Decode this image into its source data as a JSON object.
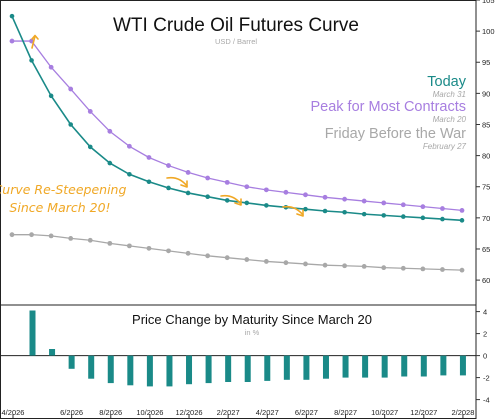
{
  "chart_data": [
    {
      "type": "line",
      "title": "WTI Crude Oil Futures Curve",
      "subtitle": "USD / Barrel",
      "ylim": [
        56,
        105
      ],
      "yticks": [
        60,
        65,
        70,
        75,
        80,
        85,
        90,
        95,
        100,
        105
      ],
      "x_months": 24,
      "grid": false,
      "legend_placement": "top-right",
      "legend": [
        {
          "label": "Today",
          "date": "March 31",
          "color": "#1a8a88"
        },
        {
          "label": "Peak for Most Contracts",
          "date": "March 20",
          "color": "#a77ee0"
        },
        {
          "label": "Friday Before the War",
          "date": "February 27",
          "color": "#a8a8a8"
        }
      ],
      "annotation": {
        "text": [
          "Curve Re-Steepening",
          "Since March 20!"
        ],
        "color": "#f0a826"
      },
      "series": [
        {
          "color": "#1a8a88",
          "values": [
            102.4,
            95.3,
            89.6,
            85.0,
            81.4,
            78.8,
            77.0,
            75.8,
            74.8,
            74.0,
            73.4,
            72.8,
            72.4,
            72.0,
            71.7,
            71.4,
            71.1,
            70.9,
            70.6,
            70.4,
            70.2,
            70.0,
            69.8,
            69.6
          ]
        },
        {
          "color": "#a77ee0",
          "values": [
            98.4,
            98.4,
            94.2,
            90.7,
            87.1,
            83.9,
            81.5,
            79.7,
            78.4,
            77.3,
            76.4,
            75.7,
            75.0,
            74.5,
            74.1,
            73.7,
            73.3,
            73.0,
            72.7,
            72.4,
            72.1,
            71.8,
            71.5,
            71.2
          ]
        },
        {
          "color": "#a8a8a8",
          "values": [
            67.3,
            67.3,
            67.1,
            66.7,
            66.4,
            65.9,
            65.5,
            65.1,
            64.7,
            64.3,
            63.9,
            63.6,
            63.3,
            63.0,
            62.8,
            62.6,
            62.4,
            62.3,
            62.2,
            62.0,
            61.9,
            61.8,
            61.7,
            61.6
          ]
        }
      ]
    },
    {
      "type": "bar",
      "title": "Price Change by Maturity Since March 20",
      "subtitle": "in %",
      "ylim": [
        -4.4,
        4.6
      ],
      "yticks": [
        -4,
        -2,
        0,
        2,
        4
      ],
      "color": "#1a8a88",
      "categories": [
        "4/2026",
        "5/2026",
        "6/2026",
        "7/2026",
        "8/2026",
        "9/2026",
        "10/2026",
        "11/2026",
        "12/2026",
        "1/2027",
        "2/2027",
        "3/2027",
        "4/2027",
        "5/2027",
        "6/2027",
        "7/2027",
        "8/2027",
        "9/2027",
        "10/2027",
        "11/2027",
        "12/2027",
        "1/2028",
        "2/2028"
      ],
      "values": [
        4.1,
        0.6,
        -1.2,
        -2.1,
        -2.5,
        -2.7,
        -2.8,
        -2.8,
        -2.6,
        -2.5,
        -2.4,
        -2.4,
        -2.3,
        -2.2,
        -2.2,
        -2.1,
        -2.0,
        -2.0,
        -2.0,
        -1.9,
        -1.9,
        -1.8,
        -1.8
      ],
      "xticks": [
        "4/2026",
        "6/2026",
        "8/2026",
        "10/2026",
        "12/2026",
        "2/2027",
        "4/2027",
        "6/2027",
        "8/2027",
        "10/2027",
        "12/2027",
        "2/2028"
      ]
    }
  ]
}
